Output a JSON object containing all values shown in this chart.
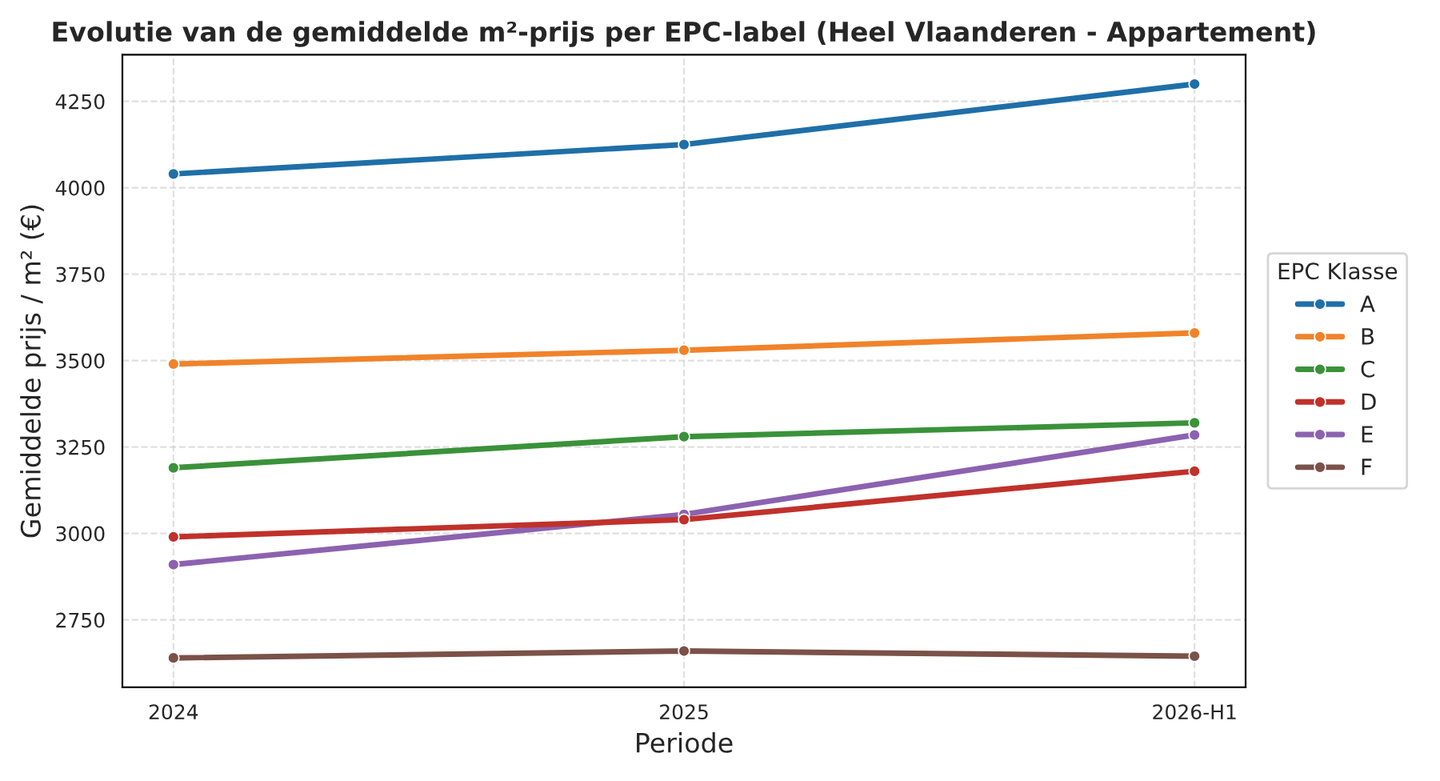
{
  "chart_data": {
    "type": "line",
    "title": "Evolutie van de gemiddelde m²-prijs per EPC-label (Heel Vlaanderen - Appartement)",
    "xlabel": "Periode",
    "ylabel": "Gemiddelde prijs / m² (€)",
    "legend_title": "EPC Klasse",
    "categories": [
      "2024",
      "2025",
      "2026-H1"
    ],
    "series": [
      {
        "name": "A",
        "color": "#1f6fa8",
        "values": [
          4040,
          4125,
          4300
        ]
      },
      {
        "name": "B",
        "color": "#f0832a",
        "values": [
          3490,
          3530,
          3580
        ]
      },
      {
        "name": "C",
        "color": "#3a923a",
        "values": [
          3190,
          3280,
          3320
        ]
      },
      {
        "name": "D",
        "color": "#c0312b",
        "values": [
          2990,
          3040,
          3180
        ]
      },
      {
        "name": "E",
        "color": "#8c62b0",
        "values": [
          2910,
          3055,
          3285
        ]
      },
      {
        "name": "F",
        "color": "#7b5148",
        "values": [
          2640,
          2660,
          2645
        ]
      }
    ],
    "ylim": [
      2555,
      4385
    ],
    "yticks": [
      2750,
      3000,
      3250,
      3500,
      3750,
      4000,
      4250
    ],
    "grid": true,
    "legend": "right",
    "marker": "circle"
  }
}
